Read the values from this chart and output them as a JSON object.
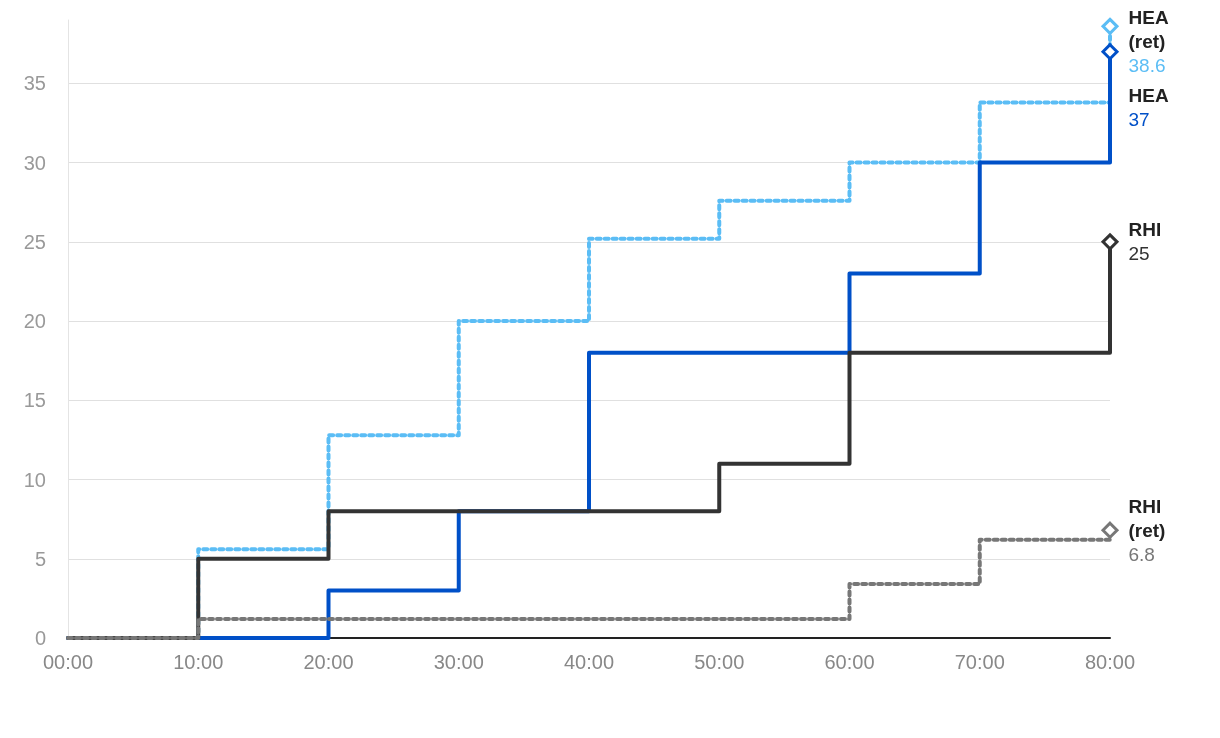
{
  "chart_data": {
    "type": "step",
    "x": [
      0,
      10,
      20,
      30,
      40,
      50,
      60,
      70,
      80
    ],
    "xlim": [
      0,
      80
    ],
    "xticks": [
      {
        "value": 0,
        "label": "00:00"
      },
      {
        "value": 10,
        "label": "10:00"
      },
      {
        "value": 20,
        "label": "20:00"
      },
      {
        "value": 30,
        "label": "30:00"
      },
      {
        "value": 40,
        "label": "40:00"
      },
      {
        "value": 50,
        "label": "50:00"
      },
      {
        "value": 60,
        "label": "60:00"
      },
      {
        "value": 70,
        "label": "70:00"
      },
      {
        "value": 80,
        "label": "80:00"
      }
    ],
    "ylim": [
      0,
      39
    ],
    "yticks": [
      0,
      5,
      10,
      15,
      20,
      25,
      30,
      35
    ],
    "grid": "y",
    "legend": false,
    "series": [
      {
        "name": "HEA (ret)",
        "color": "#5bbdf5",
        "line_style": "dotted",
        "values": [
          0,
          5.6,
          12.8,
          20,
          25.2,
          27.6,
          30,
          33.8,
          38.6
        ],
        "value_labels": [
          null,
          null,
          null,
          null,
          null,
          null,
          null,
          null,
          "38.6"
        ]
      },
      {
        "name": "HEA",
        "color": "#0050c8",
        "line_style": "solid",
        "values": [
          0,
          0,
          3,
          8,
          18,
          18,
          23,
          30,
          37
        ],
        "value_labels": [
          null,
          null,
          null,
          null,
          null,
          null,
          null,
          null,
          "37"
        ]
      },
      {
        "name": "RHI",
        "color": "#333333",
        "line_style": "solid",
        "values": [
          0,
          5,
          8,
          8,
          8,
          11,
          18,
          18,
          25
        ],
        "value_labels": [
          null,
          null,
          null,
          null,
          null,
          null,
          null,
          null,
          "25"
        ]
      },
      {
        "name": "RHI (ret)",
        "color": "#777777",
        "line_style": "dotted",
        "values": [
          0,
          1.2,
          1.2,
          1.2,
          1.2,
          1.2,
          3.4,
          6.2,
          6.8
        ],
        "value_labels": [
          null,
          null,
          null,
          null,
          null,
          null,
          null,
          null,
          "6.8"
        ]
      }
    ]
  }
}
